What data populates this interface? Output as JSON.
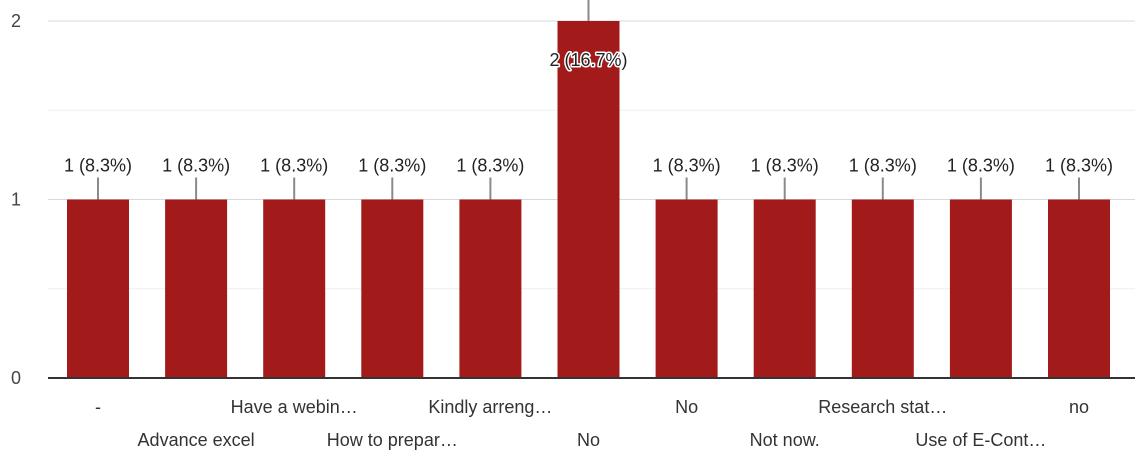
{
  "chart_data": {
    "type": "bar",
    "categories": [
      "-",
      "Advance excel",
      "Have a webin…",
      "How to prepar…",
      "Kindly arreng…",
      "No",
      "No",
      "Not now.",
      "Research stat…",
      "Use of E-Cont…",
      "no"
    ],
    "values": [
      1,
      1,
      1,
      1,
      1,
      2,
      1,
      1,
      1,
      1,
      1
    ],
    "data_labels": [
      "1 (8.3%)",
      "1 (8.3%)",
      "1 (8.3%)",
      "1 (8.3%)",
      "1 (8.3%)",
      "2 (16.7%)",
      "1 (8.3%)",
      "1 (8.3%)",
      "1 (8.3%)",
      "1 (8.3%)",
      "1 (8.3%)"
    ],
    "y_ticks": [
      "0",
      "1",
      "2"
    ],
    "ylim": [
      0,
      2
    ],
    "grid": true,
    "bar_color": "#a31a1a",
    "title": "",
    "xlabel": "",
    "ylabel": ""
  }
}
